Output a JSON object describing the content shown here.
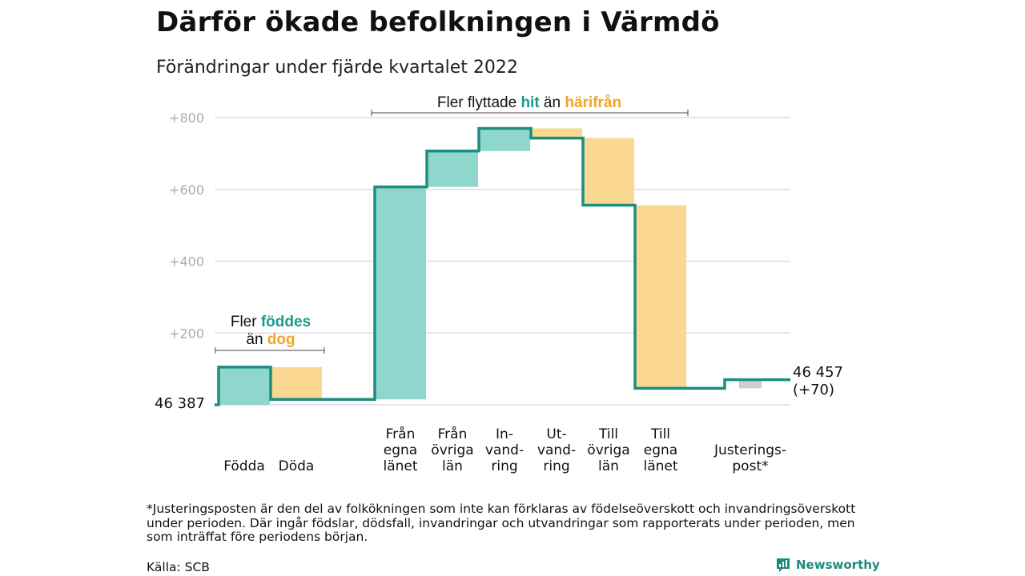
{
  "title": "Därför ökade befolkningen i Värmdö",
  "subtitle": "Förändringar under fjärde kvartalet 2022",
  "colors": {
    "increase": "#8fd6cc",
    "decrease": "#fbd892",
    "adjustment": "#cfcfcf",
    "line": "#1a8f80",
    "accent_hit": "#1a9b8a",
    "accent_harifran": "#f0a52a"
  },
  "chart_data": {
    "type": "waterfall",
    "start_value": 46387,
    "start_label": "46 387",
    "end_label": "46 457",
    "end_change_label": "(+70)",
    "yticks": [
      {
        "value": 800,
        "label": "+800"
      },
      {
        "value": 600,
        "label": "+600"
      },
      {
        "value": 400,
        "label": "+400"
      },
      {
        "value": 200,
        "label": "+200"
      }
    ],
    "ylim": [
      0,
      800
    ],
    "grid": true,
    "steps": [
      {
        "label": "Födda",
        "value": 105,
        "kind": "increase"
      },
      {
        "label": "Döda",
        "value": -90,
        "kind": "decrease"
      },
      {
        "label": "Från egna länet",
        "value": 592,
        "kind": "increase"
      },
      {
        "label": "Från övriga län",
        "value": 100,
        "kind": "increase"
      },
      {
        "label": "In-vandring",
        "value": 63,
        "kind": "increase"
      },
      {
        "label": "Ut-vandring",
        "value": -27,
        "kind": "decrease"
      },
      {
        "label": "Till övriga län",
        "value": -187,
        "kind": "decrease"
      },
      {
        "label": "Till egna länet",
        "value": -510,
        "kind": "decrease"
      },
      {
        "label": "Justerings-post*",
        "value": 24,
        "kind": "adjustment"
      }
    ],
    "category_labels": [
      [
        "Födda"
      ],
      [
        "Döda"
      ],
      [
        "Från",
        "egna",
        "länet"
      ],
      [
        "Från",
        "övriga",
        "län"
      ],
      [
        "In-",
        "vand-",
        "ring"
      ],
      [
        "Ut-",
        "vand-",
        "ring"
      ],
      [
        "Till",
        "övriga",
        "län"
      ],
      [
        "Till",
        "egna",
        "länet"
      ],
      [
        "Justerings-",
        "post*"
      ]
    ],
    "annotations": {
      "births": {
        "line1_prefix": "Fler ",
        "line1_highlight": "föddes",
        "line2_prefix": "än ",
        "line2_highlight": "dog"
      },
      "migration": {
        "prefix": "Fler flyttade ",
        "hit": "hit",
        "middle": " än ",
        "harifran": "härifrån"
      }
    }
  },
  "footnote": "*Justeringsposten är den del av folkökningen som inte kan förklaras av födelseöverskott och invandringsöverskott under perioden. Där ingår födslar, dödsfall, invandringar och utvandringar som rapporterats under perioden, men som inträffat före periodens början.",
  "source": "Källa: SCB",
  "brand": "Newsworthy"
}
